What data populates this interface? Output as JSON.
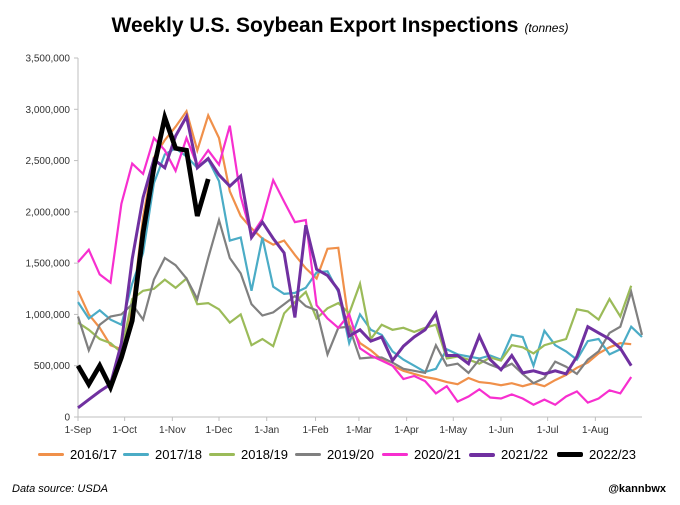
{
  "header": {
    "title": "Weekly U.S. Soybean Export Inspections",
    "unit": "(tonnes)"
  },
  "footer": {
    "source": "Data source: USDA",
    "handle": "@kannbwx"
  },
  "chart_data": {
    "type": "line",
    "title": "Weekly U.S. Soybean Export Inspections",
    "ylabel": "",
    "xlabel": "",
    "ylim": [
      0,
      3500000
    ],
    "yticks": [
      0,
      500000,
      1000000,
      1500000,
      2000000,
      2500000,
      3000000,
      3500000
    ],
    "ytick_labels": [
      "0",
      "500,000",
      "1,000,000",
      "1,500,000",
      "2,000,000",
      "2,500,000",
      "3,000,000",
      "3,500,000"
    ],
    "xlim": [
      0,
      52
    ],
    "xticks": [
      0,
      4.3,
      8.7,
      13,
      17.4,
      21.9,
      25.9,
      30.3,
      34.6,
      39,
      43.3,
      47.7
    ],
    "xtick_labels": [
      "1-Sep",
      "1-Oct",
      "1-Nov",
      "1-Dec",
      "1-Jan",
      "1-Feb",
      "1-Mar",
      "1-Apr",
      "1-May",
      "1-Jun",
      "1-Jul",
      "1-Aug"
    ],
    "grid": false,
    "legend_position": "bottom",
    "series": [
      {
        "name": "2016/17",
        "color": "#F0904A",
        "width": 2.2,
        "values": [
          1230000,
          1000000,
          870000,
          700000,
          660000,
          1050000,
          1950000,
          2530000,
          2700000,
          2830000,
          2980000,
          2600000,
          2940000,
          2720000,
          2200000,
          1960000,
          1840000,
          1740000,
          1680000,
          1720000,
          1580000,
          1450000,
          1350000,
          1640000,
          1650000,
          900000,
          720000,
          650000,
          560000,
          500000,
          450000,
          420000,
          390000,
          370000,
          340000,
          320000,
          380000,
          340000,
          330000,
          310000,
          330000,
          300000,
          330000,
          300000,
          360000,
          410000,
          480000,
          530000,
          620000,
          680000,
          720000,
          710000
        ]
      },
      {
        "name": "2017/18",
        "color": "#4BACC6",
        "width": 2.2,
        "values": [
          1120000,
          960000,
          1040000,
          950000,
          900000,
          1300000,
          1600000,
          2280000,
          2560000,
          2620000,
          2540000,
          2430000,
          2510000,
          2300000,
          1720000,
          1750000,
          1230000,
          1750000,
          1270000,
          1200000,
          1210000,
          1260000,
          1410000,
          1420000,
          1220000,
          720000,
          1000000,
          850000,
          800000,
          640000,
          560000,
          500000,
          440000,
          470000,
          660000,
          610000,
          590000,
          570000,
          600000,
          560000,
          800000,
          780000,
          500000,
          840000,
          700000,
          640000,
          560000,
          740000,
          760000,
          610000,
          660000,
          880000,
          780000
        ]
      },
      {
        "name": "2018/19",
        "color": "#9BBB59",
        "width": 2.2,
        "values": [
          920000,
          850000,
          760000,
          720000,
          630000,
          1150000,
          1230000,
          1250000,
          1340000,
          1260000,
          1350000,
          1100000,
          1110000,
          1050000,
          920000,
          1000000,
          700000,
          760000,
          690000,
          1010000,
          1120000,
          1220000,
          960000,
          1060000,
          1110000,
          1010000,
          1300000,
          760000,
          900000,
          850000,
          870000,
          830000,
          870000,
          900000,
          570000,
          590000,
          560000,
          520000,
          580000,
          550000,
          700000,
          680000,
          620000,
          700000,
          730000,
          760000,
          1050000,
          1030000,
          950000,
          1150000,
          980000,
          1280000
        ]
      },
      {
        "name": "2019/20",
        "color": "#808080",
        "width": 2.2,
        "values": [
          980000,
          650000,
          900000,
          980000,
          1000000,
          1100000,
          950000,
          1340000,
          1550000,
          1480000,
          1350000,
          1150000,
          1550000,
          1920000,
          1550000,
          1400000,
          1100000,
          990000,
          1020000,
          1100000,
          1180000,
          1080000,
          1040000,
          610000,
          870000,
          880000,
          570000,
          580000,
          580000,
          530000,
          470000,
          450000,
          430000,
          700000,
          500000,
          520000,
          430000,
          560000,
          510000,
          470000,
          520000,
          420000,
          330000,
          380000,
          540000,
          490000,
          420000,
          560000,
          640000,
          820000,
          880000,
          1220000,
          800000
        ]
      },
      {
        "name": "2020/21",
        "color": "#F72FCF",
        "width": 2.2,
        "values": [
          1510000,
          1630000,
          1390000,
          1310000,
          2080000,
          2470000,
          2370000,
          2720000,
          2600000,
          2400000,
          2720000,
          2450000,
          2600000,
          2460000,
          2840000,
          2150000,
          1770000,
          1930000,
          2310000,
          2100000,
          1900000,
          1920000,
          1090000,
          960000,
          870000,
          1000000,
          670000,
          600000,
          550000,
          500000,
          370000,
          400000,
          350000,
          230000,
          300000,
          150000,
          200000,
          270000,
          190000,
          180000,
          220000,
          180000,
          120000,
          170000,
          120000,
          200000,
          250000,
          140000,
          180000,
          260000,
          230000,
          390000
        ]
      },
      {
        "name": "2021/22",
        "color": "#7030A0",
        "width": 3.0,
        "values": [
          90000,
          170000,
          250000,
          320000,
          720000,
          1540000,
          2140000,
          2510000,
          2430000,
          2740000,
          2930000,
          2430000,
          2520000,
          2360000,
          2250000,
          2350000,
          1750000,
          1900000,
          1740000,
          1600000,
          970000,
          1870000,
          1440000,
          1380000,
          1240000,
          790000,
          850000,
          740000,
          780000,
          550000,
          690000,
          780000,
          850000,
          1010000,
          600000,
          600000,
          520000,
          790000,
          560000,
          460000,
          600000,
          430000,
          450000,
          420000,
          450000,
          420000,
          590000,
          880000,
          820000,
          760000,
          670000,
          500000
        ]
      },
      {
        "name": "2022/23",
        "color": "#000000",
        "width": 4.8,
        "values": [
          500000,
          320000,
          500000,
          290000,
          580000,
          940000,
          1800000,
          2430000,
          2920000,
          2620000,
          2600000,
          1960000,
          2320000
        ]
      }
    ]
  }
}
